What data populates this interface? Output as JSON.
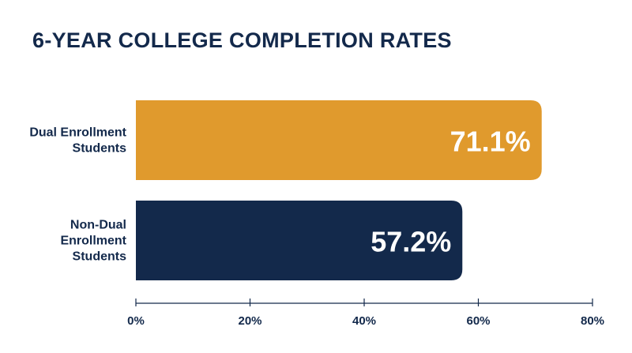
{
  "chart_data": {
    "type": "bar",
    "orientation": "horizontal",
    "title": "6-YEAR COLLEGE COMPLETION RATES",
    "xlabel": "",
    "ylabel": "",
    "categories": [
      [
        "Dual Enrollment",
        "Students"
      ],
      [
        "Non-Dual",
        "Enrollment",
        "Students"
      ]
    ],
    "values": [
      71.1,
      57.2
    ],
    "value_labels": [
      "71.1%",
      "57.2%"
    ],
    "xlim": [
      0,
      80
    ],
    "ticks": [
      0,
      20,
      40,
      60,
      80
    ],
    "tick_labels": [
      "0%",
      "20%",
      "40%",
      "60%",
      "80%"
    ],
    "bar_colors": [
      "#e09a2d",
      "#13294b"
    ],
    "grid": false,
    "legend": "none"
  }
}
